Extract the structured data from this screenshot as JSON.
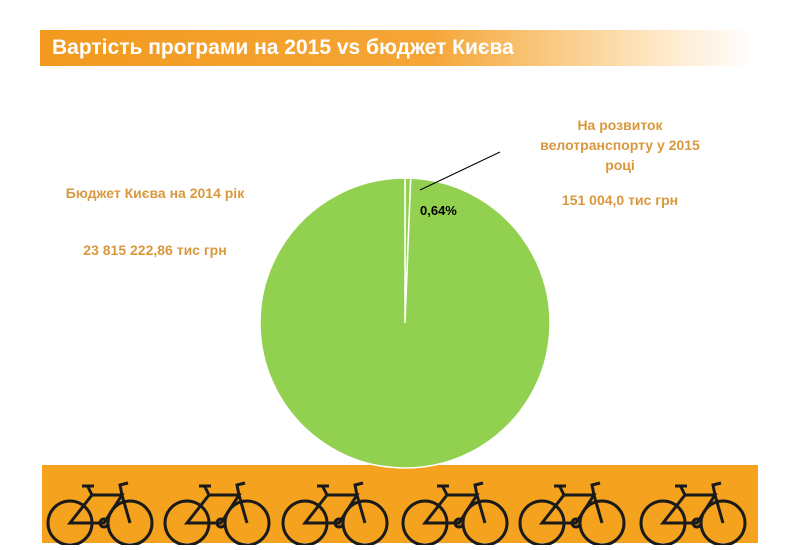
{
  "chart_data": {
    "type": "pie",
    "title": "Вартість програми на 2015 vs бюджет Києва",
    "categories": [
      "На розвиток велотранспорту у 2015 році",
      "Бюджет Києва на 2014 рік"
    ],
    "values": [
      151004.0,
      23815222.86
    ],
    "value_labels": [
      "151 004,0 тис грн",
      "23 815 222,86 тис грн"
    ],
    "colors": [
      "#92d050",
      "#92d050"
    ],
    "annotations": [
      {
        "text": "0,64%"
      }
    ]
  }
}
